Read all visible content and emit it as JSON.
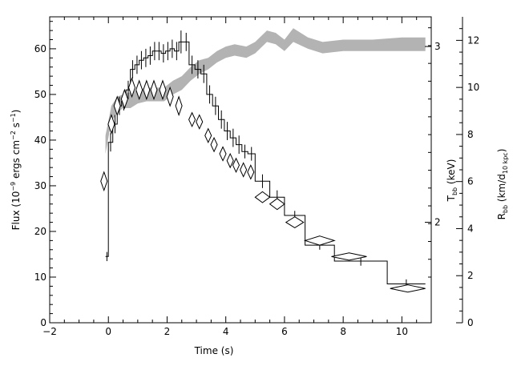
{
  "chart_data": {
    "type": "scatter",
    "xlabel": "Time (s)",
    "ylabel_left": "Flux (10<sup>-9</sup> ergs cm<sup>-2</sup> s<sup>-1</sup>)",
    "ylabel_left_parts": {
      "pre": "Flux (10",
      "sup1": "−9",
      "mid": " ergs cm",
      "sup2": "−2",
      "mid2": " s",
      "sup3": "−1",
      "post": ")"
    },
    "ylabel_right_inner": {
      "pre": "T",
      "sub": "bb",
      "post": " (keV)"
    },
    "ylabel_right_outer": {
      "pre": "R",
      "sub": "bb",
      "mid": " (km/d",
      "sub2": "10 kpc",
      "post": ")"
    },
    "xlim": [
      -2,
      11
    ],
    "ylim_flux": [
      0,
      67
    ],
    "ylim_rbb": [
      0,
      13
    ],
    "x_ticks": [
      -2,
      0,
      2,
      4,
      6,
      8,
      10
    ],
    "y_flux_ticks": [
      0,
      10,
      20,
      30,
      40,
      50,
      60
    ],
    "y_rbb_ticks": [
      0,
      2,
      4,
      6,
      8,
      10,
      12
    ],
    "t_bb_ticks": [
      {
        "label": "2",
        "flux_equiv": 22.0
      },
      {
        "label": "3",
        "flux_equiv": 60.5
      }
    ],
    "series": [
      {
        "kind": "flux_histogram",
        "points": [
          {
            "x0": -0.1,
            "x1": 0.0,
            "y": 14.5,
            "err": 1.0
          },
          {
            "x0": 0.0,
            "x1": 0.15,
            "y": 39.5,
            "err": 2.0
          },
          {
            "x0": 0.15,
            "x1": 0.3,
            "y": 43.5,
            "err": 2.0
          },
          {
            "x0": 0.3,
            "x1": 0.45,
            "y": 47.5,
            "err": 2.0
          },
          {
            "x0": 0.45,
            "x1": 0.6,
            "y": 48.5,
            "err": 2.0
          },
          {
            "x0": 0.6,
            "x1": 0.75,
            "y": 51.0,
            "err": 2.0
          },
          {
            "x0": 0.75,
            "x1": 0.9,
            "y": 55.5,
            "err": 2.0
          },
          {
            "x0": 0.9,
            "x1": 1.05,
            "y": 56.5,
            "err": 2.0
          },
          {
            "x0": 1.05,
            "x1": 1.2,
            "y": 57.5,
            "err": 2.0
          },
          {
            "x0": 1.2,
            "x1": 1.35,
            "y": 58.0,
            "err": 2.0
          },
          {
            "x0": 1.35,
            "x1": 1.5,
            "y": 58.5,
            "err": 2.0
          },
          {
            "x0": 1.5,
            "x1": 1.65,
            "y": 59.5,
            "err": 2.0
          },
          {
            "x0": 1.65,
            "x1": 1.8,
            "y": 59.5,
            "err": 2.0
          },
          {
            "x0": 1.8,
            "x1": 1.95,
            "y": 59.0,
            "err": 2.0
          },
          {
            "x0": 1.95,
            "x1": 2.1,
            "y": 59.5,
            "err": 2.0
          },
          {
            "x0": 2.1,
            "x1": 2.25,
            "y": 60.0,
            "err": 2.0
          },
          {
            "x0": 2.25,
            "x1": 2.4,
            "y": 59.5,
            "err": 2.0
          },
          {
            "x0": 2.4,
            "x1": 2.55,
            "y": 61.5,
            "err": 2.5
          },
          {
            "x0": 2.55,
            "x1": 2.75,
            "y": 61.5,
            "err": 2.0
          },
          {
            "x0": 2.75,
            "x1": 2.95,
            "y": 56.5,
            "err": 2.0
          },
          {
            "x0": 2.95,
            "x1": 3.15,
            "y": 55.5,
            "err": 2.0
          },
          {
            "x0": 3.15,
            "x1": 3.35,
            "y": 54.5,
            "err": 2.0
          },
          {
            "x0": 3.35,
            "x1": 3.55,
            "y": 50.0,
            "err": 2.0
          },
          {
            "x0": 3.55,
            "x1": 3.75,
            "y": 47.5,
            "err": 2.0
          },
          {
            "x0": 3.75,
            "x1": 3.95,
            "y": 44.5,
            "err": 2.0
          },
          {
            "x0": 3.95,
            "x1": 4.15,
            "y": 42.0,
            "err": 2.0
          },
          {
            "x0": 4.15,
            "x1": 4.35,
            "y": 40.5,
            "err": 2.0
          },
          {
            "x0": 4.35,
            "x1": 4.55,
            "y": 39.0,
            "err": 2.0
          },
          {
            "x0": 4.55,
            "x1": 4.75,
            "y": 37.5,
            "err": 1.5
          },
          {
            "x0": 4.75,
            "x1": 5.0,
            "y": 37.0,
            "err": 1.5
          },
          {
            "x0": 5.0,
            "x1": 5.5,
            "y": 31.0,
            "err": 1.5
          },
          {
            "x0": 5.5,
            "x1": 6.0,
            "y": 27.5,
            "err": 1.5
          },
          {
            "x0": 6.0,
            "x1": 6.7,
            "y": 23.5,
            "err": 1.0
          },
          {
            "x0": 6.7,
            "x1": 7.7,
            "y": 17.0,
            "err": 1.0
          },
          {
            "x0": 7.7,
            "x1": 9.5,
            "y": 13.5,
            "err": 1.0
          },
          {
            "x0": 9.5,
            "x1": 10.8,
            "y": 8.5,
            "err": 1.0
          }
        ]
      },
      {
        "kind": "rbb_diamonds",
        "points": [
          {
            "x": -0.15,
            "y": 31.0,
            "dx": 0.1,
            "dy": 2.0
          },
          {
            "x": 0.1,
            "y": 43.5,
            "dx": 0.1,
            "dy": 2.0
          },
          {
            "x": 0.3,
            "y": 47.5,
            "dx": 0.1,
            "dy": 2.0
          },
          {
            "x": 0.55,
            "y": 49.0,
            "dx": 0.1,
            "dy": 2.0
          },
          {
            "x": 0.8,
            "y": 51.5,
            "dx": 0.1,
            "dy": 2.0
          },
          {
            "x": 1.05,
            "y": 51.0,
            "dx": 0.1,
            "dy": 2.0
          },
          {
            "x": 1.3,
            "y": 51.0,
            "dx": 0.1,
            "dy": 2.0
          },
          {
            "x": 1.55,
            "y": 51.0,
            "dx": 0.1,
            "dy": 2.0
          },
          {
            "x": 1.85,
            "y": 51.0,
            "dx": 0.1,
            "dy": 2.0
          },
          {
            "x": 2.1,
            "y": 49.5,
            "dx": 0.1,
            "dy": 2.0
          },
          {
            "x": 2.4,
            "y": 47.5,
            "dx": 0.1,
            "dy": 2.0
          },
          {
            "x": 2.85,
            "y": 44.5,
            "dx": 0.1,
            "dy": 1.5
          },
          {
            "x": 3.1,
            "y": 44.0,
            "dx": 0.1,
            "dy": 1.5
          },
          {
            "x": 3.4,
            "y": 41.0,
            "dx": 0.1,
            "dy": 1.5
          },
          {
            "x": 3.6,
            "y": 39.0,
            "dx": 0.1,
            "dy": 1.5
          },
          {
            "x": 3.9,
            "y": 37.0,
            "dx": 0.1,
            "dy": 1.5
          },
          {
            "x": 4.15,
            "y": 35.5,
            "dx": 0.1,
            "dy": 1.5
          },
          {
            "x": 4.35,
            "y": 34.5,
            "dx": 0.1,
            "dy": 1.5
          },
          {
            "x": 4.6,
            "y": 33.5,
            "dx": 0.1,
            "dy": 1.5
          },
          {
            "x": 4.85,
            "y": 33.0,
            "dx": 0.1,
            "dy": 1.5
          },
          {
            "x": 5.25,
            "y": 27.5,
            "dx": 0.25,
            "dy": 1.2
          },
          {
            "x": 5.75,
            "y": 26.0,
            "dx": 0.25,
            "dy": 1.2
          },
          {
            "x": 6.35,
            "y": 22.0,
            "dx": 0.3,
            "dy": 1.2
          },
          {
            "x": 7.2,
            "y": 18.0,
            "dx": 0.5,
            "dy": 1.0
          },
          {
            "x": 8.2,
            "y": 14.5,
            "dx": 0.6,
            "dy": 0.8
          },
          {
            "x": 10.2,
            "y": 7.5,
            "dx": 0.6,
            "dy": 0.8
          }
        ]
      },
      {
        "kind": "tbb_band",
        "color": "#b3b3b3",
        "points": [
          {
            "x": -0.1,
            "lo": 37.0,
            "hi": 41.0
          },
          {
            "x": 0.1,
            "lo": 44.0,
            "hi": 47.5
          },
          {
            "x": 0.3,
            "lo": 46.0,
            "hi": 49.5
          },
          {
            "x": 0.5,
            "lo": 47.0,
            "hi": 50.0
          },
          {
            "x": 0.75,
            "lo": 47.0,
            "hi": 50.5
          },
          {
            "x": 1.0,
            "lo": 48.0,
            "hi": 51.0
          },
          {
            "x": 1.3,
            "lo": 48.5,
            "hi": 51.5
          },
          {
            "x": 1.6,
            "lo": 48.5,
            "hi": 51.5
          },
          {
            "x": 1.9,
            "lo": 48.5,
            "hi": 51.5
          },
          {
            "x": 2.2,
            "lo": 50.0,
            "hi": 53.0
          },
          {
            "x": 2.5,
            "lo": 51.0,
            "hi": 54.0
          },
          {
            "x": 2.8,
            "lo": 53.0,
            "hi": 56.0
          },
          {
            "x": 3.1,
            "lo": 54.5,
            "hi": 57.5
          },
          {
            "x": 3.4,
            "lo": 55.5,
            "hi": 58.0
          },
          {
            "x": 3.7,
            "lo": 57.0,
            "hi": 59.5
          },
          {
            "x": 4.0,
            "lo": 58.0,
            "hi": 60.5
          },
          {
            "x": 4.3,
            "lo": 58.5,
            "hi": 61.0
          },
          {
            "x": 4.7,
            "lo": 58.0,
            "hi": 60.5
          },
          {
            "x": 5.0,
            "lo": 59.0,
            "hi": 61.5
          },
          {
            "x": 5.4,
            "lo": 61.5,
            "hi": 64.0
          },
          {
            "x": 5.7,
            "lo": 61.0,
            "hi": 63.5
          },
          {
            "x": 6.0,
            "lo": 59.5,
            "hi": 62.0
          },
          {
            "x": 6.3,
            "lo": 61.5,
            "hi": 64.5
          },
          {
            "x": 6.8,
            "lo": 60.0,
            "hi": 62.5
          },
          {
            "x": 7.3,
            "lo": 59.0,
            "hi": 61.5
          },
          {
            "x": 8.0,
            "lo": 59.5,
            "hi": 62.0
          },
          {
            "x": 9.0,
            "lo": 59.5,
            "hi": 62.0
          },
          {
            "x": 10.0,
            "lo": 59.5,
            "hi": 62.5
          },
          {
            "x": 10.8,
            "lo": 59.5,
            "hi": 62.5
          }
        ]
      }
    ]
  }
}
